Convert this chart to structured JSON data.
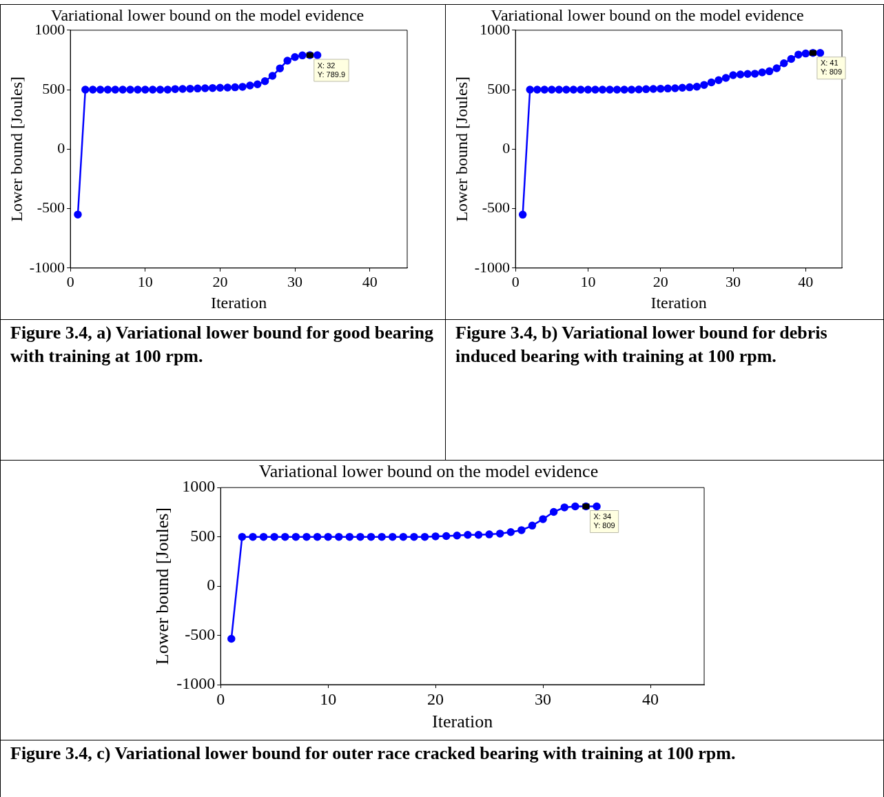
{
  "chart_data": [
    {
      "type": "line",
      "title": "Variational lower bound on the model evidence",
      "xlabel": "Iteration",
      "ylabel": "Lower bound [Joules]",
      "x": [
        1,
        2,
        3,
        4,
        5,
        6,
        7,
        8,
        9,
        10,
        11,
        12,
        13,
        14,
        15,
        16,
        17,
        18,
        19,
        20,
        21,
        22,
        23,
        24,
        25,
        26,
        27,
        28,
        29,
        30,
        31,
        32,
        33
      ],
      "series": [
        {
          "color": "#0000ff",
          "values": [
            -550,
            500,
            500,
            500,
            500,
            500,
            500,
            500,
            500,
            500,
            500,
            500,
            500,
            505,
            506,
            508,
            510,
            512,
            514,
            516,
            518,
            520,
            524,
            535,
            545,
            571,
            616,
            679,
            744,
            774,
            788,
            789.9,
            790
          ]
        }
      ],
      "xlim": [
        0,
        45
      ],
      "xticks": [
        0,
        10,
        20,
        30,
        40
      ],
      "ylim": [
        -1000,
        1000
      ],
      "yticks": [
        -1000,
        -500,
        0,
        500,
        1000
      ],
      "grid": false,
      "legend": false,
      "marker": "circle",
      "line_style": "solid",
      "annotations": [
        {
          "text": "X: 32\nY: 789.9",
          "x": 32,
          "y": 789.9
        },
        "Figure 3.4, a)  Variational lower bound for good bearing with training at 100 rpm."
      ]
    },
    {
      "type": "line",
      "title": "Variational lower bound on the model evidence",
      "xlabel": "Iteration",
      "ylabel": "Lower bound [Joules]",
      "x": [
        1,
        2,
        3,
        4,
        5,
        6,
        7,
        8,
        9,
        10,
        11,
        12,
        13,
        14,
        15,
        16,
        17,
        18,
        19,
        20,
        21,
        22,
        23,
        24,
        25,
        26,
        27,
        28,
        29,
        30,
        31,
        32,
        33,
        34,
        35,
        36,
        37,
        38,
        39,
        40,
        41,
        42
      ],
      "series": [
        {
          "color": "#0000ff",
          "values": [
            -551,
            500,
            500,
            500,
            500,
            500,
            500,
            500,
            500,
            500,
            500,
            500,
            500,
            500,
            500,
            500,
            502,
            504,
            506,
            508,
            510,
            512,
            516,
            520,
            525,
            540,
            561,
            580,
            599,
            622,
            628,
            632,
            634,
            645,
            655,
            680,
            722,
            758,
            795,
            804,
            809,
            809
          ]
        }
      ],
      "xlim": [
        0,
        45
      ],
      "xticks": [
        0,
        10,
        20,
        30,
        40
      ],
      "ylim": [
        -1000,
        1000
      ],
      "yticks": [
        -1000,
        -500,
        0,
        500,
        1000
      ],
      "grid": false,
      "legend": false,
      "marker": "circle",
      "line_style": "solid",
      "annotations": [
        {
          "text": "X: 41\nY: 809",
          "x": 41,
          "y": 809
        },
        "Figure 3.4, b)  Variational lower bound for debris induced bearing with training at 100 rpm."
      ]
    },
    {
      "type": "line",
      "title": "Variational lower bound on the model evidence",
      "xlabel": "Iteration",
      "ylabel": "Lower bound [Joules]",
      "x": [
        1,
        2,
        3,
        4,
        5,
        6,
        7,
        8,
        9,
        10,
        11,
        12,
        13,
        14,
        15,
        16,
        17,
        18,
        19,
        20,
        21,
        22,
        23,
        24,
        25,
        26,
        27,
        28,
        29,
        30,
        31,
        32,
        33,
        34,
        35
      ],
      "series": [
        {
          "color": "#0000ff",
          "values": [
            -535,
            500,
            500,
            500,
            500,
            500,
            500,
            500,
            500,
            500,
            500,
            500,
            500,
            500,
            500,
            500,
            500,
            500,
            500,
            505,
            508,
            513,
            520,
            520,
            525,
            533,
            548,
            568,
            614,
            680,
            753,
            799,
            809,
            809,
            809
          ]
        }
      ],
      "xlim": [
        0,
        45
      ],
      "xticks": [
        0,
        10,
        20,
        30,
        40
      ],
      "ylim": [
        -1000,
        1000
      ],
      "yticks": [
        -1000,
        -500,
        0,
        500,
        1000
      ],
      "grid": false,
      "legend": false,
      "marker": "circle",
      "line_style": "solid",
      "annotations": [
        {
          "text": "X: 34\nY: 809",
          "x": 34,
          "y": 809
        },
        "Figure 3.4, c) Variational lower bound for outer race cracked bearing with training at 100 rpm."
      ]
    }
  ]
}
